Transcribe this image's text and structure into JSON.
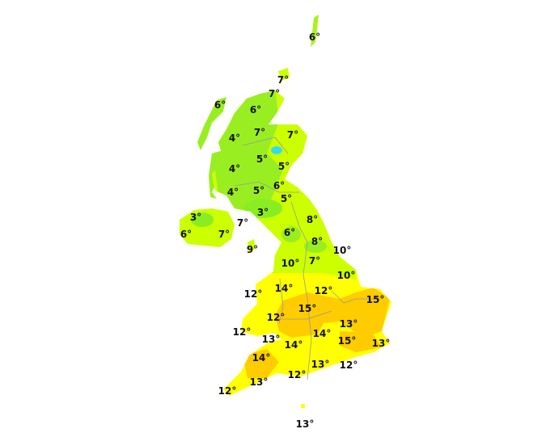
{
  "colors": {
    "cold_cyan": "#33ddee",
    "green": "#88ee22",
    "yellow_green": "#ccff00",
    "yellow": "#ffff00",
    "orange": "#ffcc00",
    "boundary": "#999999"
  },
  "unit": "°",
  "labels": [
    {
      "text": "6°",
      "region": "shetland"
    },
    {
      "text": "7°",
      "region": "orkney"
    },
    {
      "text": "7°",
      "region": "caithness"
    },
    {
      "text": "6°",
      "region": "lewis"
    },
    {
      "text": "6°",
      "region": "sutherland"
    },
    {
      "text": "7°",
      "region": "inverness"
    },
    {
      "text": "7°",
      "region": "aberdeen"
    },
    {
      "text": "4°",
      "region": "skye"
    },
    {
      "text": "5°",
      "region": "cairngorms"
    },
    {
      "text": "5°",
      "region": "angus"
    },
    {
      "text": "4°",
      "region": "mull"
    },
    {
      "text": "6°",
      "region": "fife"
    },
    {
      "text": "5°",
      "region": "stirling"
    },
    {
      "text": "5°",
      "region": "borders"
    },
    {
      "text": "4°",
      "region": "kintyre"
    },
    {
      "text": "3°",
      "region": "northern-ireland-west"
    },
    {
      "text": "3°",
      "region": "southern-uplands"
    },
    {
      "text": "7°",
      "region": "ayrshire"
    },
    {
      "text": "8°",
      "region": "northumberland"
    },
    {
      "text": "6°",
      "region": "fermanagh"
    },
    {
      "text": "7°",
      "region": "belfast"
    },
    {
      "text": "6°",
      "region": "cumbria"
    },
    {
      "text": "8°",
      "region": "durham"
    },
    {
      "text": "9°",
      "region": "isle-of-man"
    },
    {
      "text": "10°",
      "region": "yorkshire-coast"
    },
    {
      "text": "10°",
      "region": "lancashire"
    },
    {
      "text": "7°",
      "region": "pennines"
    },
    {
      "text": "10°",
      "region": "lincolnshire"
    },
    {
      "text": "14°",
      "region": "north-wales"
    },
    {
      "text": "12°",
      "region": "anglesey"
    },
    {
      "text": "12°",
      "region": "east-midlands"
    },
    {
      "text": "15°",
      "region": "norfolk"
    },
    {
      "text": "15°",
      "region": "west-midlands"
    },
    {
      "text": "12°",
      "region": "mid-wales"
    },
    {
      "text": "12°",
      "region": "pembroke"
    },
    {
      "text": "13°",
      "region": "essex"
    },
    {
      "text": "14°",
      "region": "thames-valley"
    },
    {
      "text": "13°",
      "region": "south-wales"
    },
    {
      "text": "15°",
      "region": "london"
    },
    {
      "text": "14°",
      "region": "bristol"
    },
    {
      "text": "13°",
      "region": "kent"
    },
    {
      "text": "14°",
      "region": "exmoor"
    },
    {
      "text": "13°",
      "region": "hampshire"
    },
    {
      "text": "12°",
      "region": "sussex"
    },
    {
      "text": "12°",
      "region": "dorset"
    },
    {
      "text": "13°",
      "region": "devon"
    },
    {
      "text": "12°",
      "region": "cornwall"
    },
    {
      "text": "13°",
      "region": "channel-islands"
    }
  ]
}
